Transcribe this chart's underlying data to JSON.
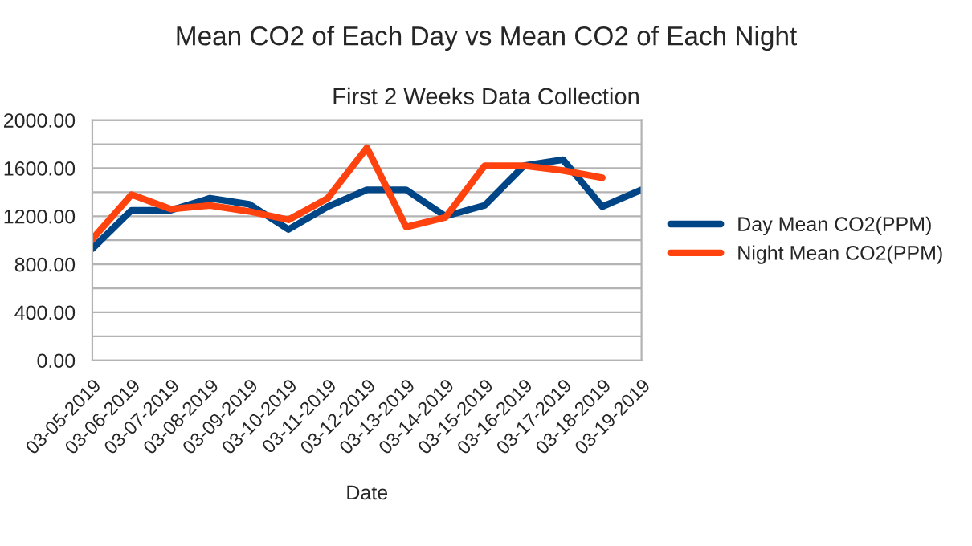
{
  "chart_data": {
    "type": "line",
    "title": "Mean CO2 of Each Day vs Mean CO2 of Each Night",
    "subtitle": "First 2 Weeks Data Collection",
    "xlabel": "Date",
    "categories": [
      "03-05-2019",
      "03-06-2019",
      "03-07-2019",
      "03-08-2019",
      "03-09-2019",
      "03-10-2019",
      "03-11-2019",
      "03-12-2019",
      "03-13-2019",
      "03-14-2019",
      "03-15-2019",
      "03-16-2019",
      "03-17-2019",
      "03-18-2019",
      "03-19-2019"
    ],
    "series": [
      {
        "name": "Day Mean CO2(PPM)",
        "color": "#004586",
        "values": [
          930,
          1250,
          1250,
          1350,
          1300,
          1090,
          1280,
          1420,
          1420,
          1200,
          1290,
          1620,
          1670,
          1280,
          1420
        ]
      },
      {
        "name": "Night Mean CO2(PPM)",
        "color": "#ff420e",
        "values": [
          1010,
          1380,
          1260,
          1290,
          1240,
          1170,
          1350,
          1770,
          1110,
          1190,
          1620,
          1620,
          1580,
          1520,
          null
        ]
      }
    ],
    "ylim": [
      0,
      2000
    ],
    "yticks": [
      {
        "value": 0,
        "label": "0.00"
      },
      {
        "value": 200,
        "label": null
      },
      {
        "value": 400,
        "label": "400.00"
      },
      {
        "value": 600,
        "label": null
      },
      {
        "value": 800,
        "label": "800.00"
      },
      {
        "value": 1000,
        "label": null
      },
      {
        "value": 1200,
        "label": "1200.00"
      },
      {
        "value": 1400,
        "label": null
      },
      {
        "value": 1600,
        "label": "1600.00"
      },
      {
        "value": 1800,
        "label": null
      },
      {
        "value": 2000,
        "label": "2000.00"
      }
    ],
    "grid": "y",
    "legend": "right",
    "marker": "none",
    "line_style": "solid"
  }
}
